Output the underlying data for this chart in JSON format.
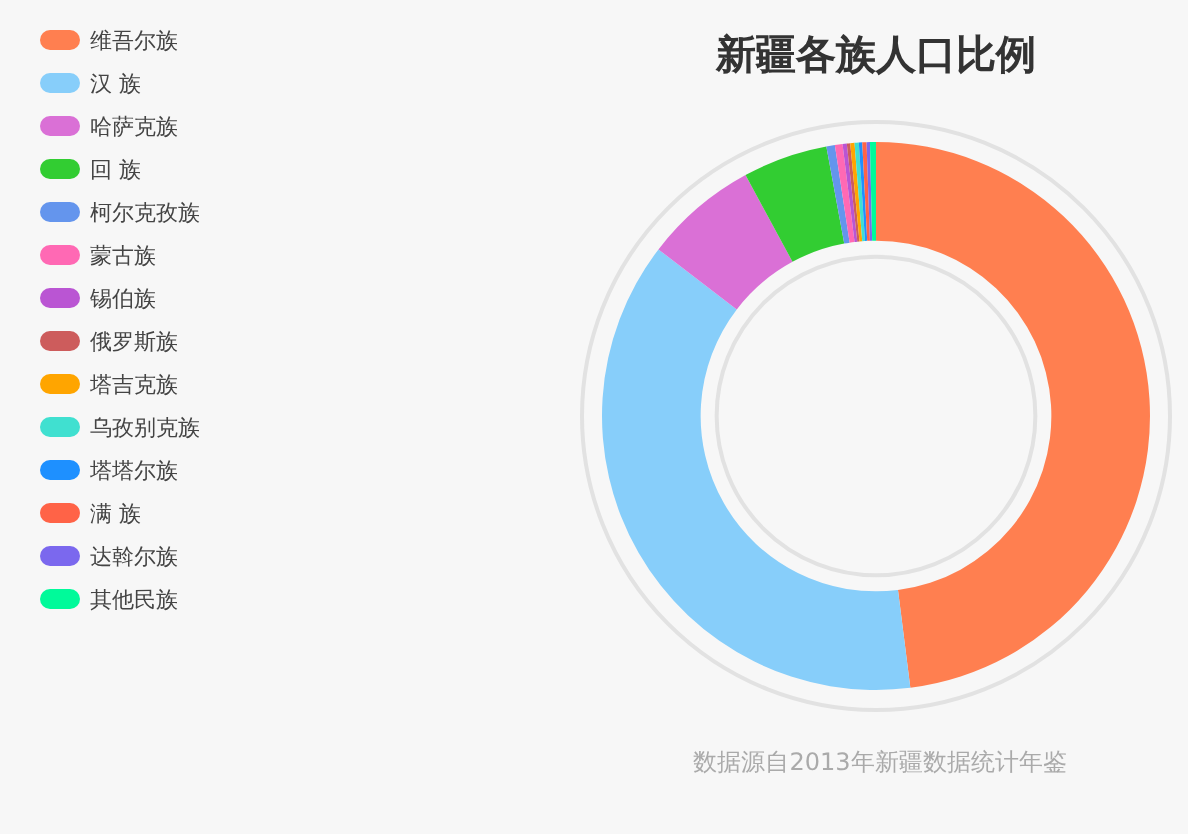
{
  "chart_data": {
    "type": "donut",
    "title": "新疆各族人口比例",
    "categories": [
      "维吾尔族",
      "汉 族",
      "哈萨克族",
      "回 族",
      "柯尔克孜族",
      "蒙古族",
      "锡伯族",
      "俄罗斯族",
      "塔吉克族",
      "乌孜别克族",
      "塔塔尔族",
      "满 族",
      "达斡尔族",
      "其他民族"
    ],
    "values": [
      48.0,
      37.4,
      6.7,
      5.0,
      0.5,
      0.45,
      0.25,
      0.2,
      0.25,
      0.25,
      0.2,
      0.25,
      0.2,
      0.35
    ],
    "colors": [
      "#ff7f50",
      "#87cefa",
      "#da70d6",
      "#32cd32",
      "#6495ed",
      "#ff69b4",
      "#ba55d3",
      "#cd5c5c",
      "#ffa500",
      "#40e0d0",
      "#1e90ff",
      "#ff6347",
      "#7b68ee",
      "#00fa9a"
    ],
    "legend": "top left",
    "annotations": [
      "数据源自2013年新疆数据统计年鉴"
    ]
  }
}
